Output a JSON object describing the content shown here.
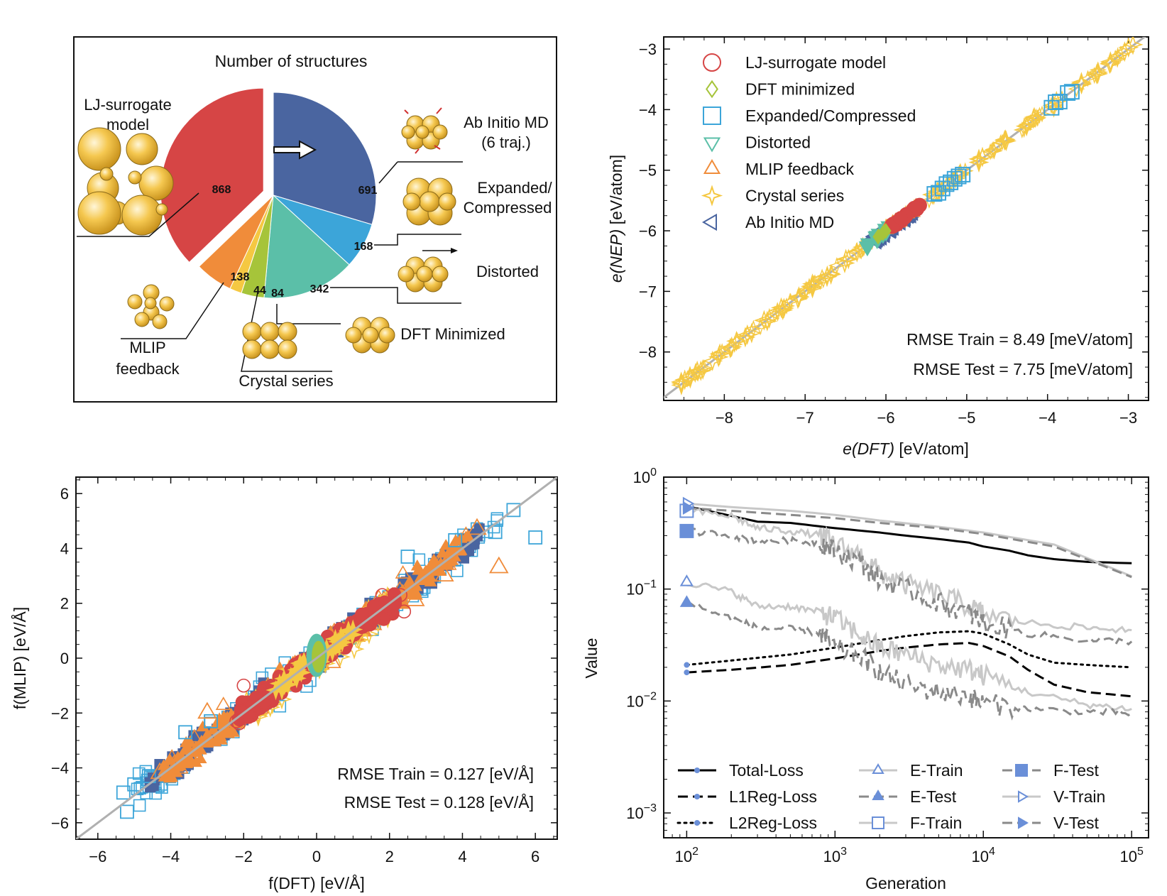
{
  "colors": {
    "lj": "#d64545",
    "dft_min": "#a6c43a",
    "expanded": "#3ca5d9",
    "distorted": "#5bbfa8",
    "mlip": "#f08c3a",
    "crystal": "#f5c842",
    "abinitio": "#4a65a0",
    "total_loss": "#000000",
    "light_grey": "#c8c8c8",
    "mid_grey": "#8a8a8a",
    "marker_blue": "#6a8fd8",
    "atom_fill": "#f2c250",
    "atom_edge": "#8a6a1a",
    "diag_line": "#b0b0b0"
  },
  "chart_data": [
    {
      "id": "pie",
      "type": "pie",
      "title": "Number of structures",
      "slices": [
        {
          "key": "lj",
          "label": "LJ-surrogate model",
          "value": 868,
          "value_label": "868",
          "color_key": "lj",
          "exploded": true
        },
        {
          "key": "ab",
          "label": "Ab Initio MD (6 traj.)",
          "value": 691,
          "value_label": "691",
          "color_key": "abinitio",
          "exploded": false
        },
        {
          "key": "exp",
          "label": "Expanded/ Compressed",
          "value": 168,
          "value_label": "168",
          "color_key": "expanded",
          "exploded": false
        },
        {
          "key": "dist",
          "label": "Distorted",
          "value": 342,
          "value_label": "342",
          "color_key": "distorted",
          "exploded": false
        },
        {
          "key": "dftmin",
          "label": "DFT Minimized",
          "value": 84,
          "value_label": "84",
          "color_key": "dft_min",
          "exploded": false
        },
        {
          "key": "crys",
          "label": "Crystal series",
          "value": 44,
          "value_label": "44",
          "color_key": "crystal",
          "exploded": false
        },
        {
          "key": "mlip",
          "label": "MLIP feedback",
          "value": 138,
          "value_label": "138",
          "color_key": "mlip",
          "exploded": false
        }
      ],
      "annotations": {
        "lj_line1": "LJ-surrogate",
        "lj_line2": "model",
        "ab_line1": "Ab Initio MD",
        "ab_line2": "(6 traj.)",
        "exp_line1": "Expanded/",
        "exp_line2": "Compressed",
        "dist": "Distorted",
        "dftmin": "DFT Minimized",
        "mlip_line1": "MLIP",
        "mlip_line2": "feedback",
        "crys": "Crystal series"
      }
    },
    {
      "id": "energy_parity",
      "type": "scatter",
      "xlabel_italic": "e(DFT)",
      "xlabel_unit": " [eV/atom]",
      "ylabel_italic": "e(NEP)",
      "ylabel_unit": " [eV/atom]",
      "xlim": [
        -8.75,
        -2.75
      ],
      "ylim": [
        -8.8,
        -2.8
      ],
      "xticks": [
        -8,
        -7,
        -6,
        -5,
        -4,
        -3
      ],
      "yticks": [
        -8,
        -7,
        -6,
        -5,
        -4,
        -3
      ],
      "tick_labels": [
        "−8",
        "−7",
        "−6",
        "−5",
        "−4",
        "−3"
      ],
      "legend": [
        {
          "label": "LJ-surrogate model",
          "marker": "circle",
          "color_key": "lj"
        },
        {
          "label": "DFT minimized",
          "marker": "diamond",
          "color_key": "dft_min"
        },
        {
          "label": "Expanded/Compressed",
          "marker": "square",
          "color_key": "expanded"
        },
        {
          "label": "Distorted",
          "marker": "triangle-down",
          "color_key": "distorted"
        },
        {
          "label": "MLIP feedback",
          "marker": "triangle-up",
          "color_key": "mlip"
        },
        {
          "label": "Crystal series",
          "marker": "star",
          "color_key": "crystal"
        },
        {
          "label": "Ab Initio MD",
          "marker": "triangle-left",
          "color_key": "abinitio"
        }
      ],
      "rmse_train": "RMSE Train = 8.49 [meV/atom]",
      "rmse_test": "RMSE Test  = 7.75 [meV/atom]",
      "crystal_points": [
        -8.55,
        -8.45,
        -8.3,
        -8.1,
        -7.9,
        -7.7,
        -7.5,
        -7.3,
        -7.1,
        -6.9,
        -6.7,
        -6.5,
        -6.3,
        -6.0,
        -5.7,
        -5.4,
        -5.1,
        -4.8,
        -4.5,
        -4.2,
        -3.9,
        -3.6,
        -3.4,
        -3.2,
        -3.0
      ],
      "expanded_points": [
        -5.15,
        -5.2,
        -5.25,
        -5.3,
        -5.35,
        -5.4,
        -3.95,
        -3.85,
        -3.75,
        -3.7,
        -5.1,
        -5.05,
        -3.9
      ],
      "cluster_center": -5.9
    },
    {
      "id": "force_parity",
      "type": "scatter",
      "xlabel": "f(DFT) [eV/Å]",
      "ylabel": "f(MLIP) [eV/Å]",
      "xlim": [
        -6.6,
        6.6
      ],
      "ylim": [
        -6.6,
        6.6
      ],
      "xticks": [
        -6,
        -4,
        -2,
        0,
        2,
        4,
        6
      ],
      "yticks": [
        -6,
        -4,
        -2,
        0,
        2,
        4,
        6
      ],
      "tick_labels": [
        "−6",
        "−4",
        "−2",
        "0",
        "2",
        "4",
        "6"
      ],
      "rmse_train": "RMSE Train = 0.127 [eV/Å]",
      "rmse_test": "RMSE Test  = 0.128 [eV/Å]",
      "outlier_squares": [
        [
          -5.3,
          -4.9
        ],
        [
          -5.0,
          -4.6
        ],
        [
          -4.6,
          -4.3
        ],
        [
          -5.2,
          -5.6
        ],
        [
          4.9,
          4.6
        ],
        [
          5.4,
          5.4
        ],
        [
          6.0,
          4.4
        ],
        [
          3.8,
          4.3
        ],
        [
          -3.6,
          -2.7
        ],
        [
          -2.9,
          -2.3
        ],
        [
          2.5,
          3.7
        ]
      ],
      "outlier_triangles": [
        [
          4.4,
          4.7
        ],
        [
          5.0,
          3.3
        ],
        [
          3.5,
          3.0
        ],
        [
          -3.9,
          -3.9
        ],
        [
          -4.3,
          -4.2
        ],
        [
          2.7,
          2.1
        ],
        [
          -3.0,
          -2.0
        ]
      ],
      "circles": [
        [
          -2.2,
          -2.3
        ],
        [
          -1.8,
          -2.0
        ],
        [
          2.3,
          2.3
        ],
        [
          2.4,
          1.7
        ],
        [
          -2.0,
          -1.0
        ],
        [
          1.8,
          2.3
        ]
      ]
    },
    {
      "id": "loss_curves",
      "type": "line",
      "xlabel": "Generation",
      "ylabel": "Value",
      "xscale": "log",
      "yscale": "log",
      "xlim": [
        70,
        130000
      ],
      "ylim": [
        0.0006,
        1.0
      ],
      "xtick_labels": [
        {
          "value": 100,
          "base": "10",
          "exp": "2"
        },
        {
          "value": 1000,
          "base": "10",
          "exp": "3"
        },
        {
          "value": 10000,
          "base": "10",
          "exp": "4"
        },
        {
          "value": 100000,
          "base": "10",
          "exp": "5"
        }
      ],
      "ytick_labels": [
        {
          "value": 1.0,
          "base": "10",
          "exp": "0"
        },
        {
          "value": 0.1,
          "base": "10",
          "exp": "−1"
        },
        {
          "value": 0.01,
          "base": "10",
          "exp": "−2"
        },
        {
          "value": 0.001,
          "base": "10",
          "exp": "−3"
        }
      ],
      "series": [
        {
          "name": "Total-Loss",
          "style": "solid",
          "color_key": "total_loss",
          "width": 3,
          "marker": "dot",
          "x": [
            100,
            200,
            300,
            500,
            1000,
            2000,
            3000,
            5000,
            8000,
            10000,
            15000,
            20000,
            30000,
            50000,
            100000
          ],
          "y": [
            0.55,
            0.45,
            0.4,
            0.39,
            0.35,
            0.32,
            0.3,
            0.28,
            0.26,
            0.24,
            0.22,
            0.2,
            0.185,
            0.175,
            0.17
          ]
        },
        {
          "name": "L1Reg-Loss",
          "style": "dash",
          "color_key": "total_loss",
          "width": 3,
          "marker": "dot",
          "x": [
            100,
            200,
            500,
            1000,
            2000,
            3000,
            5000,
            8000,
            10000,
            15000,
            20000,
            30000,
            50000,
            100000
          ],
          "y": [
            0.018,
            0.019,
            0.021,
            0.024,
            0.028,
            0.03,
            0.032,
            0.033,
            0.031,
            0.025,
            0.019,
            0.014,
            0.012,
            0.011
          ]
        },
        {
          "name": "L2Reg-Loss",
          "style": "dot",
          "color_key": "total_loss",
          "width": 3,
          "marker": "dot",
          "x": [
            100,
            200,
            500,
            1000,
            2000,
            3000,
            5000,
            8000,
            10000,
            15000,
            20000,
            30000,
            50000,
            100000
          ],
          "y": [
            0.021,
            0.023,
            0.026,
            0.03,
            0.035,
            0.038,
            0.041,
            0.042,
            0.04,
            0.032,
            0.026,
            0.022,
            0.021,
            0.02
          ]
        },
        {
          "name": "E-Train",
          "style": "solid",
          "color_key": "light_grey",
          "width": 3,
          "marker": "triangle-up-open",
          "x": [
            100,
            200,
            300,
            500,
            800,
            1000,
            1500,
            2000,
            3000,
            5000,
            8000,
            10000,
            20000,
            50000,
            100000
          ],
          "y": [
            0.115,
            0.095,
            0.07,
            0.07,
            0.062,
            0.055,
            0.038,
            0.03,
            0.026,
            0.021,
            0.019,
            0.017,
            0.012,
            0.0093,
            0.0085
          ]
        },
        {
          "name": "E-Test",
          "style": "dash",
          "color_key": "mid_grey",
          "width": 3,
          "marker": "triangle-up-filled",
          "x": [
            100,
            200,
            300,
            500,
            800,
            1000,
            1500,
            2000,
            3000,
            5000,
            8000,
            10000,
            20000,
            50000,
            100000
          ],
          "y": [
            0.075,
            0.055,
            0.045,
            0.044,
            0.04,
            0.03,
            0.025,
            0.018,
            0.014,
            0.012,
            0.011,
            0.0095,
            0.0085,
            0.008,
            0.0078
          ]
        },
        {
          "name": "F-Train",
          "style": "solid",
          "color_key": "light_grey",
          "width": 3,
          "marker": "square-open",
          "x": [
            100,
            200,
            300,
            500,
            800,
            1000,
            1500,
            2000,
            3000,
            5000,
            8000,
            10000,
            20000,
            50000,
            100000
          ],
          "y": [
            0.5,
            0.45,
            0.35,
            0.33,
            0.3,
            0.25,
            0.2,
            0.14,
            0.11,
            0.09,
            0.07,
            0.06,
            0.05,
            0.045,
            0.043
          ]
        },
        {
          "name": "F-Test",
          "style": "dash",
          "color_key": "mid_grey",
          "width": 3,
          "marker": "square-filled",
          "x": [
            100,
            200,
            300,
            500,
            800,
            1000,
            1500,
            2000,
            3000,
            5000,
            8000,
            10000,
            20000,
            50000,
            100000
          ],
          "y": [
            0.33,
            0.3,
            0.27,
            0.27,
            0.26,
            0.22,
            0.17,
            0.12,
            0.1,
            0.075,
            0.06,
            0.05,
            0.04,
            0.035,
            0.034
          ]
        },
        {
          "name": "V-Train",
          "style": "solid",
          "color_key": "light_grey",
          "width": 3,
          "marker": "triangle-right-open",
          "x": [
            100,
            200,
            500,
            1000,
            2000,
            5000,
            10000,
            30000,
            100000
          ],
          "y": [
            0.58,
            0.54,
            0.5,
            0.46,
            0.41,
            0.36,
            0.32,
            0.25,
            0.13
          ]
        },
        {
          "name": "V-Test",
          "style": "dash",
          "color_key": "mid_grey",
          "width": 3,
          "marker": "triangle-right-filled",
          "x": [
            100,
            200,
            500,
            1000,
            2000,
            5000,
            10000,
            30000,
            100000
          ],
          "y": [
            0.53,
            0.5,
            0.46,
            0.43,
            0.39,
            0.35,
            0.31,
            0.24,
            0.128
          ]
        }
      ]
    }
  ]
}
